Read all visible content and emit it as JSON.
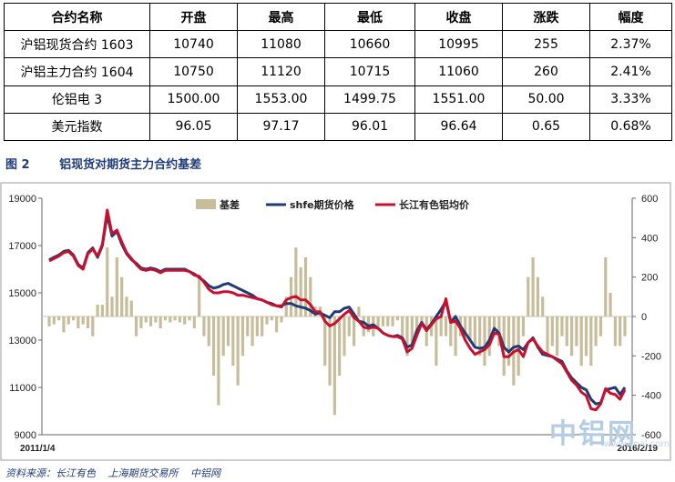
{
  "table": {
    "headers": [
      "合约名称",
      "开盘",
      "最高",
      "最低",
      "收盘",
      "涨跌",
      "幅度"
    ],
    "rows": [
      [
        "沪铝现货合约 1603",
        "10740",
        "11080",
        "10660",
        "10995",
        "255",
        "2.37%"
      ],
      [
        "沪铝主力合约 1604",
        "10750",
        "11120",
        "10715",
        "11060",
        "260",
        "2.41%"
      ],
      [
        "伦铝电 3",
        "1500.00",
        "1553.00",
        "1499.75",
        "1551.00",
        "50.00",
        "3.33%"
      ],
      [
        "美元指数",
        "96.05",
        "97.17",
        "96.01",
        "96.64",
        "0.65",
        "0.68%"
      ]
    ]
  },
  "figure": {
    "number": "图 2",
    "title": "铝现货对期货主力合约基差"
  },
  "chart_data": {
    "type": "line",
    "x_start_label": "2011/1/4",
    "x_end_label": "2016/2/19",
    "y_left": {
      "min": 9000,
      "max": 19000,
      "ticks": [
        9000,
        11000,
        13000,
        15000,
        17000,
        19000
      ]
    },
    "y_right": {
      "min": -600,
      "max": 600,
      "ticks": [
        -600,
        -400,
        -200,
        0,
        200,
        400,
        600
      ]
    },
    "legend_position": "top",
    "colors": {
      "basis": "#c8bd9b",
      "futures": "#1f3b73",
      "spot": "#c8102e"
    },
    "series": [
      {
        "name": "基差",
        "axis": "right",
        "kind": "bar",
        "values": [
          -50,
          -40,
          -20,
          -80,
          -40,
          -20,
          -60,
          -40,
          -60,
          -100,
          60,
          60,
          350,
          100,
          300,
          200,
          100,
          80,
          -100,
          -60,
          -30,
          -50,
          -30,
          -60,
          -20,
          -30,
          -20,
          -30,
          -40,
          -20,
          -60,
          200,
          -100,
          -150,
          -300,
          -450,
          -200,
          -150,
          -250,
          -350,
          -200,
          -100,
          -150,
          -100,
          -100,
          -40,
          -20,
          -80,
          -30,
          100,
          200,
          350,
          250,
          300,
          200,
          50,
          50,
          -250,
          -350,
          -500,
          -300,
          -200,
          -100,
          -150,
          50,
          -100,
          -80,
          -100,
          -50,
          -50,
          -50,
          -50,
          -20,
          -100,
          -200,
          -150,
          -80,
          -50,
          -150,
          -100,
          -250,
          -100,
          -100,
          -150,
          -200,
          -100,
          -100,
          -120,
          -150,
          -200,
          -250,
          -200,
          -100,
          -150,
          -300,
          -250,
          -350,
          -300,
          -100,
          200,
          300,
          200,
          100,
          -200,
          -150,
          -200,
          -100,
          -150,
          -200,
          -150,
          -250,
          -200,
          -250,
          -150,
          -100,
          300,
          120,
          -150,
          -150,
          -100
        ]
      },
      {
        "name": "shfe期货价格",
        "axis": "left",
        "kind": "line",
        "values": [
          16400,
          16500,
          16600,
          16750,
          16800,
          16600,
          16200,
          16050,
          16700,
          16900,
          16500,
          17000,
          18300,
          17400,
          17600,
          17050,
          16650,
          16400,
          16250,
          16050,
          16000,
          16050,
          16000,
          15900,
          16000,
          16000,
          16000,
          16000,
          16000,
          15900,
          15800,
          15650,
          15500,
          15300,
          15200,
          15250,
          15350,
          15400,
          15300,
          15200,
          15100,
          15000,
          14900,
          14750,
          14700,
          14600,
          14550,
          14450,
          14450,
          14550,
          14550,
          14450,
          14400,
          14350,
          14250,
          14100,
          14150,
          14050,
          13950,
          14200,
          14200,
          14350,
          14400,
          14100,
          13800,
          13750,
          13600,
          13650,
          13500,
          13300,
          13200,
          13150,
          13200,
          13100,
          12700,
          12800,
          13400,
          13750,
          13450,
          13700,
          14000,
          14300,
          14650,
          13750,
          14000,
          13600,
          13300,
          13000,
          12700,
          12650,
          12700,
          13000,
          13500,
          13300,
          12700,
          12500,
          12700,
          12750,
          12600,
          12900,
          13100,
          12700,
          12400,
          12350,
          12300,
          12200,
          12100,
          11700,
          11400,
          11200,
          11000,
          10900,
          10500,
          10300,
          10350,
          10900,
          10950,
          11000,
          10700,
          11000
        ]
      },
      {
        "name": "长江有色铝均价",
        "axis": "left",
        "kind": "line",
        "values": [
          16350,
          16450,
          16550,
          16700,
          16750,
          16550,
          16150,
          16000,
          16650,
          16850,
          16550,
          17050,
          18500,
          17500,
          17650,
          17150,
          16700,
          16450,
          16200,
          16000,
          15950,
          16000,
          15950,
          15850,
          15950,
          15950,
          15950,
          15950,
          15950,
          15900,
          15750,
          15700,
          15450,
          15150,
          15000,
          15000,
          15050,
          15050,
          15000,
          14900,
          14900,
          14850,
          14800,
          14750,
          14700,
          14600,
          14500,
          14450,
          14400,
          14700,
          14800,
          14850,
          14700,
          14700,
          14500,
          14200,
          14200,
          13800,
          13600,
          13700,
          13900,
          14100,
          14250,
          13950,
          13800,
          13550,
          13500,
          13550,
          13500,
          13300,
          13200,
          13150,
          13150,
          13050,
          12500,
          12650,
          13200,
          13700,
          13400,
          13650,
          13900,
          14000,
          14750,
          13750,
          13800,
          13500,
          13000,
          12650,
          12400,
          12500,
          12600,
          12800,
          13300,
          13250,
          12300,
          12300,
          12500,
          12600,
          12300,
          12900,
          13050,
          12750,
          12500,
          12400,
          12300,
          12150,
          12000,
          11650,
          11300,
          11100,
          10800,
          10650,
          10100,
          10050,
          10300,
          10950,
          10750,
          10700,
          10500,
          10900
        ]
      }
    ]
  },
  "source": {
    "items": [
      "资料来源：长江有色",
      "上海期货交易所",
      "中铝网"
    ]
  },
  "watermark": {
    "text": "中铝网",
    "url": "www.cnal.com"
  }
}
